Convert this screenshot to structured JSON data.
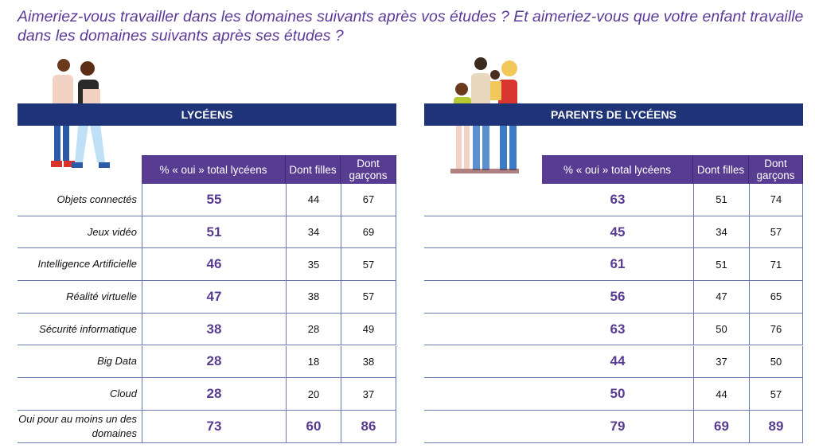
{
  "title": "Aimeriez-vous travailler dans les domaines suivants après vos études ? Et aimeriez-vous que votre enfant travaille dans les domaines suivants après ses études ?",
  "left": {
    "heading": "LYCÉENS",
    "col_total": "% « oui » total lycéens",
    "col_filles": "Dont filles",
    "col_garcons": "Dont garçons"
  },
  "right": {
    "heading": "PARENTS DE LYCÉENS",
    "col_total": "% « oui » total lycéens",
    "col_filles": "Dont filles",
    "col_garcons": "Dont garçons"
  },
  "rows": [
    {
      "label": "Objets connectés",
      "l": [
        55,
        44,
        67
      ],
      "r": [
        63,
        51,
        74
      ]
    },
    {
      "label": "Jeux vidéo",
      "l": [
        51,
        34,
        69
      ],
      "r": [
        45,
        34,
        57
      ]
    },
    {
      "label": "Intelligence Artificielle",
      "l": [
        46,
        35,
        57
      ],
      "r": [
        61,
        51,
        71
      ]
    },
    {
      "label": "Réalité virtuelle",
      "l": [
        47,
        38,
        57
      ],
      "r": [
        56,
        47,
        65
      ]
    },
    {
      "label": "Sécurité informatique",
      "l": [
        38,
        28,
        49
      ],
      "r": [
        63,
        50,
        76
      ]
    },
    {
      "label": "Big Data",
      "l": [
        28,
        18,
        38
      ],
      "r": [
        44,
        37,
        50
      ]
    },
    {
      "label": "Cloud",
      "l": [
        28,
        20,
        37
      ],
      "r": [
        50,
        44,
        57
      ]
    },
    {
      "label": "Oui pour au moins un des domaines",
      "l": [
        73,
        60,
        86
      ],
      "r": [
        79,
        69,
        89
      ],
      "bold_all": true
    }
  ]
}
